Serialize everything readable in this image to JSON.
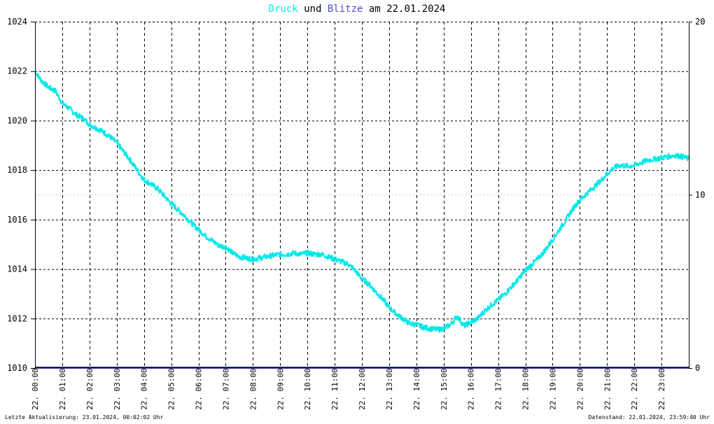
{
  "title": {
    "part1": "Druck",
    "part2": " und ",
    "part3": "Blitze",
    "part4": " am 22.01.2024"
  },
  "colors": {
    "pressure": "#00e8e8",
    "lightning": "#5050c8",
    "grid": "#000000",
    "baseline": "#000066"
  },
  "footer": {
    "left": "Letzte Aktualisierung: 23.01.2024, 00:02:02 Uhr",
    "right": "Datenstand: 22.01.2024, 23:59:40 Uhr"
  },
  "chart_data": {
    "type": "line",
    "title": "Druck und Blitze am 22.01.2024",
    "x_ticks": [
      "22. 00:00",
      "22. 01:00",
      "22. 02:00",
      "22. 03:00",
      "22. 04:00",
      "22. 05:00",
      "22. 06:00",
      "22. 07:00",
      "22. 08:00",
      "22. 09:00",
      "22. 10:00",
      "22. 11:00",
      "22. 12:00",
      "22. 13:00",
      "22. 14:00",
      "22. 15:00",
      "22. 16:00",
      "22. 17:00",
      "22. 18:00",
      "22. 19:00",
      "22. 20:00",
      "22. 21:00",
      "22. 22:00",
      "22. 23:00"
    ],
    "y_left": {
      "ticks": [
        1010,
        1012,
        1014,
        1016,
        1018,
        1020,
        1022,
        1024
      ],
      "range": [
        1010,
        1024
      ]
    },
    "y_right": {
      "ticks": [
        0,
        10,
        20
      ],
      "range": [
        0,
        20
      ]
    },
    "grid": true,
    "series": [
      {
        "name": "Druck",
        "axis": "left",
        "x_hours": [
          0,
          0.25,
          0.5,
          0.75,
          1,
          1.25,
          1.5,
          1.75,
          2,
          2.25,
          2.5,
          2.75,
          3,
          3.25,
          3.5,
          3.75,
          4,
          4.25,
          4.5,
          4.75,
          5,
          5.25,
          5.5,
          5.75,
          6,
          6.25,
          6.5,
          6.75,
          7,
          7.25,
          7.5,
          7.75,
          8,
          8.25,
          8.5,
          8.75,
          9,
          9.25,
          9.5,
          9.75,
          10,
          10.25,
          10.5,
          10.75,
          11,
          11.25,
          11.5,
          11.75,
          12,
          12.25,
          12.5,
          12.75,
          13,
          13.25,
          13.5,
          13.75,
          14,
          14.25,
          14.5,
          14.75,
          15,
          15.25,
          15.5,
          15.75,
          16,
          16.25,
          16.5,
          16.75,
          17,
          17.25,
          17.5,
          17.75,
          18,
          18.25,
          18.5,
          18.75,
          19,
          19.25,
          19.5,
          19.75,
          20,
          20.25,
          20.5,
          20.75,
          21,
          21.25,
          21.5,
          21.75,
          22,
          22.25,
          22.5,
          22.75,
          23,
          23.25,
          23.5,
          23.75,
          24
        ],
        "values": [
          1022.0,
          1021.6,
          1021.35,
          1021.2,
          1020.7,
          1020.5,
          1020.25,
          1020.1,
          1019.85,
          1019.7,
          1019.55,
          1019.35,
          1019.1,
          1018.75,
          1018.4,
          1018.0,
          1017.6,
          1017.45,
          1017.25,
          1016.95,
          1016.65,
          1016.4,
          1016.15,
          1015.85,
          1015.6,
          1015.35,
          1015.15,
          1014.95,
          1014.9,
          1014.65,
          1014.5,
          1014.45,
          1014.4,
          1014.45,
          1014.5,
          1014.55,
          1014.6,
          1014.6,
          1014.65,
          1014.6,
          1014.65,
          1014.6,
          1014.6,
          1014.5,
          1014.4,
          1014.3,
          1014.2,
          1013.95,
          1013.6,
          1013.4,
          1013.1,
          1012.8,
          1012.45,
          1012.2,
          1012.0,
          1011.8,
          1011.75,
          1011.65,
          1011.6,
          1011.55,
          1011.6,
          1011.75,
          1012.1,
          1011.7,
          1011.85,
          1012.0,
          1012.3,
          1012.55,
          1012.75,
          1013.0,
          1013.3,
          1013.6,
          1013.95,
          1014.2,
          1014.45,
          1014.8,
          1015.2,
          1015.6,
          1016.0,
          1016.45,
          1016.8,
          1017.05,
          1017.3,
          1017.55,
          1017.85,
          1018.1,
          1018.2,
          1018.15,
          1018.2,
          1018.3,
          1018.4,
          1018.45,
          1018.5,
          1018.55,
          1018.6,
          1018.55,
          1018.45
        ]
      },
      {
        "name": "Blitze",
        "axis": "right",
        "x_hours": [
          0,
          24
        ],
        "values": [
          0,
          0
        ]
      }
    ]
  }
}
